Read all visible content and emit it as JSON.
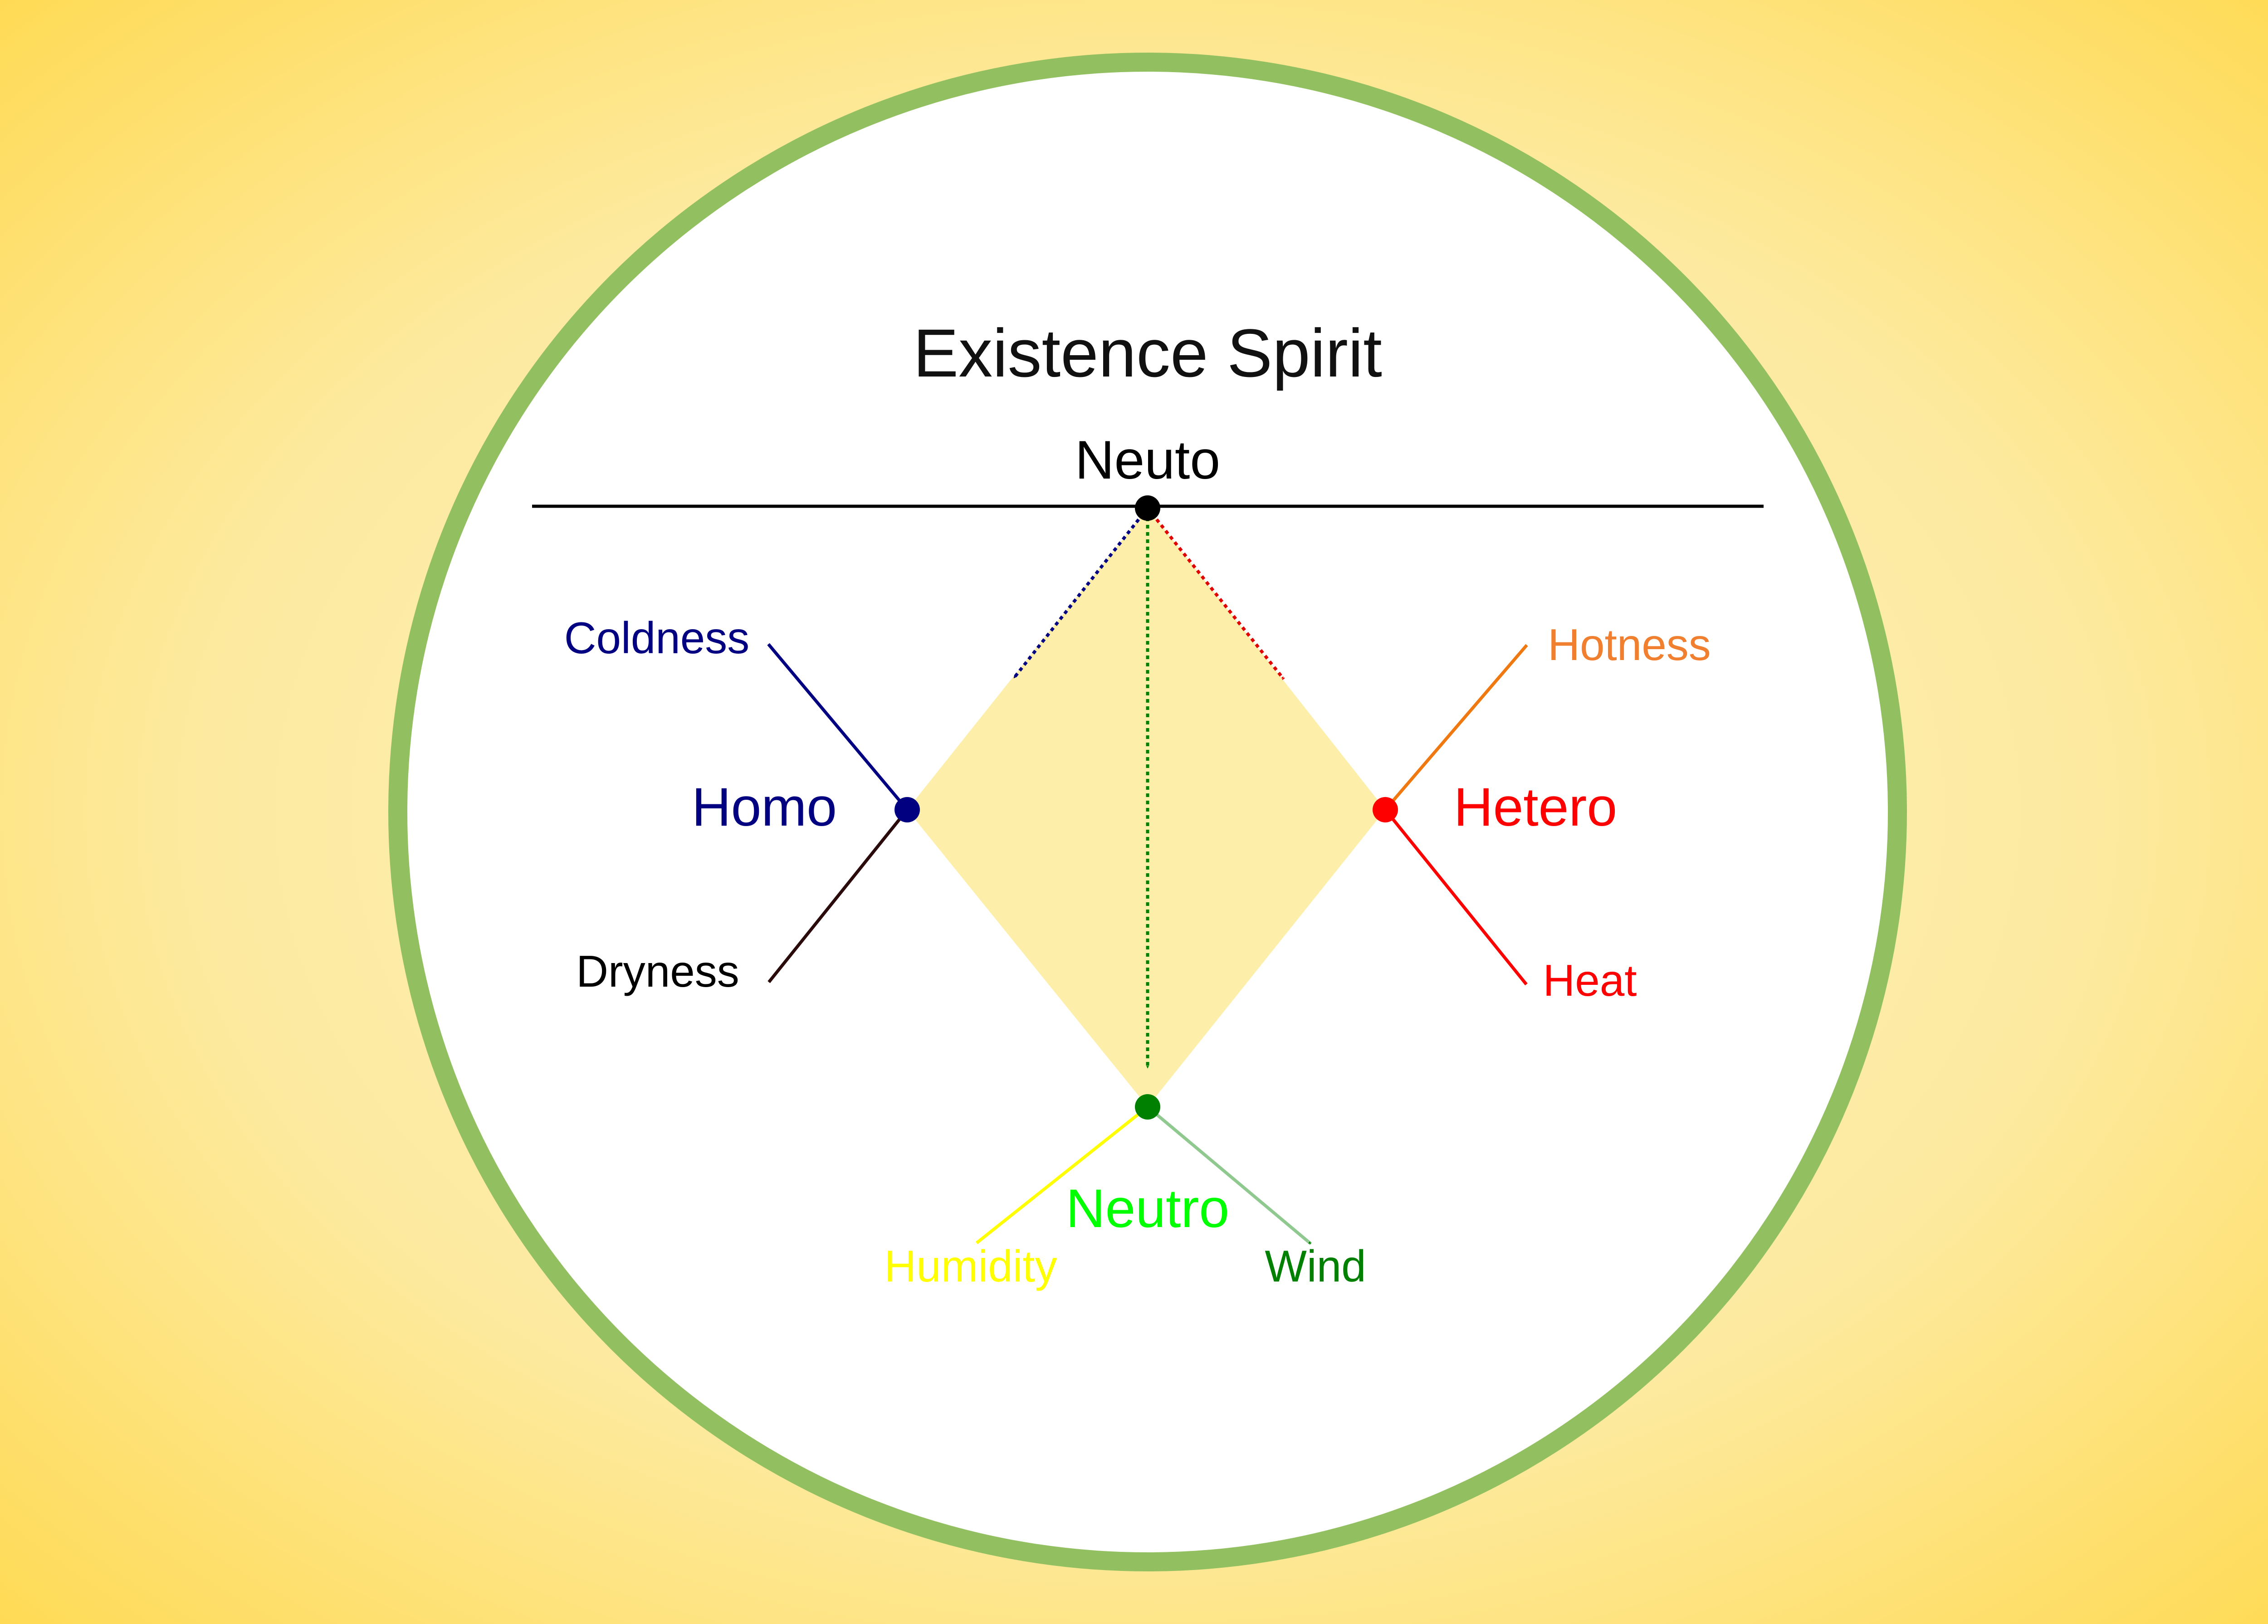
{
  "diagram": {
    "title": "Existence Spirit",
    "top_node": {
      "label": "Neuto",
      "color": "#000000"
    },
    "homo": {
      "label": "Homo",
      "color": "#000080",
      "branch_up": {
        "label": "Coldness",
        "color": "#000080"
      },
      "branch_down": {
        "label": "Dryness",
        "color": "#000000",
        "arrow_color": "#2a0a0a"
      }
    },
    "hetero": {
      "label": "Hetero",
      "color": "#ff0000",
      "branch_up": {
        "label": "Hotness",
        "color": "#f08030",
        "arrow_color": "#f07810"
      },
      "branch_down": {
        "label": "Heat",
        "color": "#ff0000"
      }
    },
    "neutro": {
      "label": "Neutro",
      "label_color": "#00ff00",
      "node_color": "#008000",
      "branch_left": {
        "label": "Humidity",
        "color": "#ffff00"
      },
      "branch_right": {
        "label": "Wind",
        "color": "#008000",
        "arrow_color": "#8fc98f"
      }
    },
    "colors": {
      "background_edge": "#ffde57",
      "background_center": "#fdf2c2",
      "ring": "#92c060",
      "diamond_fill": "#fdeeaa",
      "baseline": "#000000"
    }
  }
}
